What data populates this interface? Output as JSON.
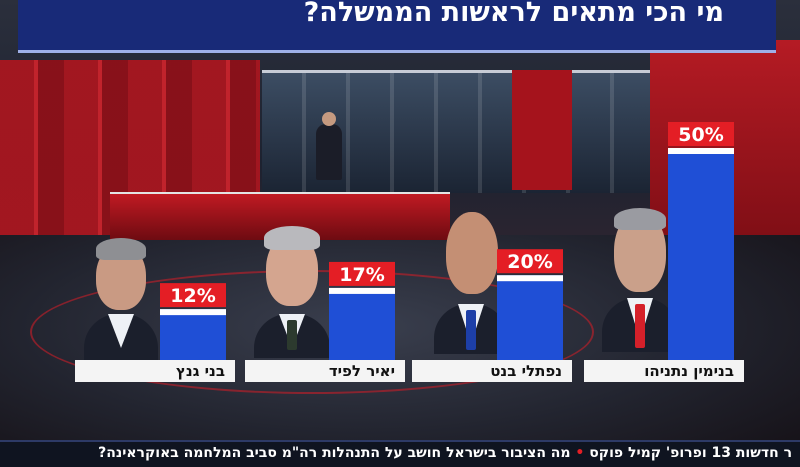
{
  "title": {
    "text": "מי הכי מתאים לראשות הממשלה?"
  },
  "chart_data": {
    "type": "bar",
    "title": "מי הכי מתאים לראשות הממשלה?",
    "categories": [
      "בני גנץ",
      "יאיר לפיד",
      "נפתלי בנט",
      "בנימין נתניהו"
    ],
    "values": [
      12,
      17,
      20,
      50
    ],
    "value_labels": [
      "12%",
      "17%",
      "20%",
      "50%"
    ],
    "unit": "%",
    "xlabel": "",
    "ylabel": "",
    "grid": false,
    "legend": "none",
    "colors": {
      "bar": "#1f4fd6",
      "label_box": "#e41e25",
      "name_strip": "#f4f4f4"
    }
  },
  "ticker": {
    "text": "מה הציבור בישראל חושב על התנהלות רה\"מ סביב המלחמה באוקראינה?",
    "program": "ר חדשות 13 ופרופ' קמיל פוקס"
  },
  "icons": {
    "channel_logo": "channel-13-logo"
  }
}
